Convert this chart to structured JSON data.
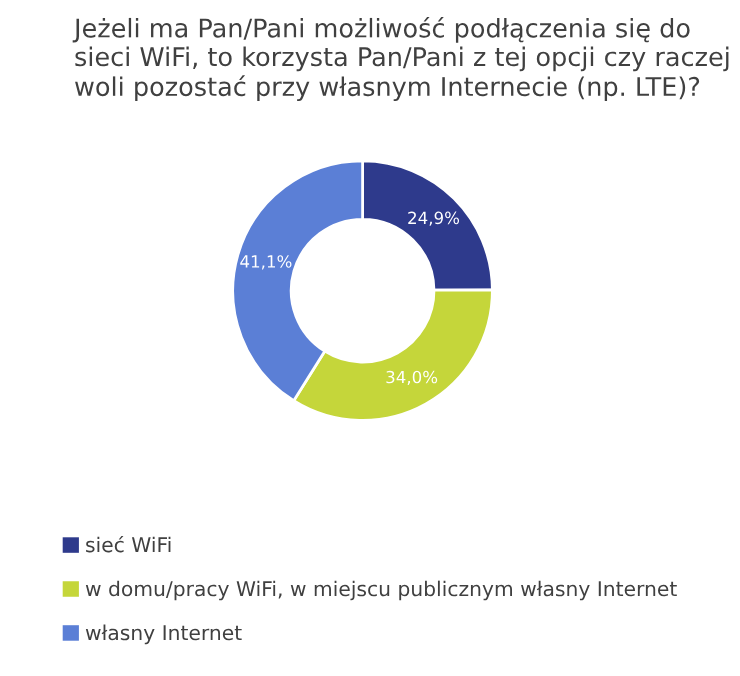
{
  "chart_data": {
    "type": "donut",
    "title": "Jeżeli ma Pan/Pani możliwość podłączenia się do sieci WiFi, to korzysta Pan/Pani z tej opcji czy raczej woli pozostać przy własnym Internecie (np. LTE)?",
    "categories": [
      "sieć WiFi",
      "w domu/pracy WiFi, w miejscu publicznym własny Internet",
      "własny Internet"
    ],
    "values": [
      24.9,
      34.0,
      41.1
    ],
    "value_labels": [
      "24,9%",
      "34,0%",
      "41,1%"
    ],
    "colors": [
      "#2e3a8c",
      "#c5d63a",
      "#5b7fd6"
    ],
    "legend": "bottom"
  }
}
